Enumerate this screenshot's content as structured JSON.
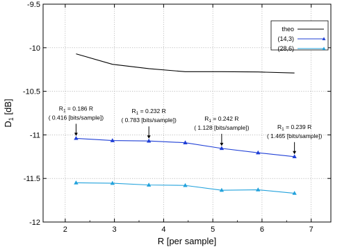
{
  "chart_data": {
    "type": "line",
    "xlabel": "R [per sample]",
    "ylabel": "D",
    "ylabel_sub": "1",
    "ylabel_unit": " [dB]",
    "xlim": [
      1.55,
      7.4
    ],
    "ylim": [
      -12,
      -9.5
    ],
    "xticks": [
      2,
      3,
      4,
      5,
      6,
      7
    ],
    "yticks": [
      -12,
      -11.5,
      -11,
      -10.5,
      -10,
      -9.5
    ],
    "xtick_labels": [
      "2",
      "3",
      "4",
      "5",
      "6",
      "7"
    ],
    "ytick_labels": [
      "-12",
      "-11.5",
      "-11",
      "-10.5",
      "-10",
      "-9.5"
    ],
    "grid": true,
    "legend_position": "top-right",
    "series": [
      {
        "name": "theo",
        "color": "#000000",
        "marker": "none",
        "x": [
          2.22,
          2.96,
          3.7,
          4.44,
          5.18,
          5.92,
          6.66
        ],
        "y": [
          -10.07,
          -10.19,
          -10.24,
          -10.275,
          -10.275,
          -10.278,
          -10.29
        ]
      },
      {
        "name": "(14,3)",
        "color": "#1f3fd6",
        "marker": "triangle",
        "x": [
          2.22,
          2.96,
          3.7,
          4.44,
          5.18,
          5.92,
          6.66
        ],
        "y": [
          -11.04,
          -11.065,
          -11.07,
          -11.09,
          -11.155,
          -11.205,
          -11.25
        ]
      },
      {
        "name": "(28,6)",
        "color": "#22a2dc",
        "marker": "triangle",
        "x": [
          2.22,
          2.96,
          3.7,
          4.44,
          5.18,
          5.92,
          6.66
        ],
        "y": [
          -11.55,
          -11.555,
          -11.575,
          -11.58,
          -11.635,
          -11.63,
          -11.67
        ]
      }
    ],
    "annotations": [
      {
        "line1_prefix": "R",
        "line1_sub": "1",
        "line1_suffix": " = 0.186 R",
        "line2": "( 0.416 [bits/sample])",
        "x": 2.22,
        "y": -11.04
      },
      {
        "line1_prefix": "R",
        "line1_sub": "1",
        "line1_suffix": " = 0.232 R",
        "line2": "( 0.783 [bits/sample])",
        "x": 3.7,
        "y": -11.07
      },
      {
        "line1_prefix": "R",
        "line1_sub": "1",
        "line1_suffix": " = 0.242 R",
        "line2": "( 1.128 [bits/sample])",
        "x": 5.18,
        "y": -11.155
      },
      {
        "line1_prefix": "R",
        "line1_sub": "1",
        "line1_suffix": " = 0.239 R",
        "line2": "( 1.465 [bits/sample])",
        "x": 6.66,
        "y": -11.25
      }
    ]
  }
}
